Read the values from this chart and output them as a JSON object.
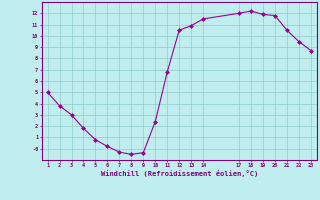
{
  "x": [
    1,
    2,
    3,
    4,
    5,
    6,
    7,
    8,
    9,
    10,
    11,
    12,
    13,
    14,
    17,
    18,
    19,
    20,
    21,
    22,
    23
  ],
  "y": [
    5.0,
    3.8,
    3.0,
    1.8,
    0.8,
    0.2,
    -0.3,
    -0.5,
    -0.35,
    2.4,
    6.8,
    10.5,
    10.9,
    11.5,
    12.0,
    12.2,
    11.9,
    11.8,
    10.5,
    9.5,
    8.7
  ],
  "xlabel": "Windchill (Refroidissement éolien,°C)",
  "xlim": [
    0.5,
    23.5
  ],
  "ylim": [
    -1,
    13
  ],
  "xticks": [
    1,
    2,
    3,
    4,
    5,
    6,
    7,
    8,
    9,
    10,
    11,
    12,
    13,
    14,
    17,
    18,
    19,
    20,
    21,
    22,
    23
  ],
  "xtick_labels": [
    "1",
    "2",
    "3",
    "4",
    "5",
    "6",
    "7",
    "8",
    "9",
    "10",
    "11",
    "12",
    "13",
    "14",
    "17",
    "18",
    "19",
    "20",
    "21",
    "22",
    "23"
  ],
  "yticks": [
    0,
    1,
    2,
    3,
    4,
    5,
    6,
    7,
    8,
    9,
    10,
    11,
    12
  ],
  "ytick_labels": [
    "-0",
    "1",
    "2",
    "3",
    "4",
    "5",
    "6",
    "7",
    "8",
    "9",
    "10",
    "11",
    "12"
  ],
  "line_color": "#990099",
  "marker_color": "#990099",
  "bg_color": "#c0eeee",
  "grid_color": "#90cccc",
  "axis_color": "#800080",
  "label_color": "#800080"
}
